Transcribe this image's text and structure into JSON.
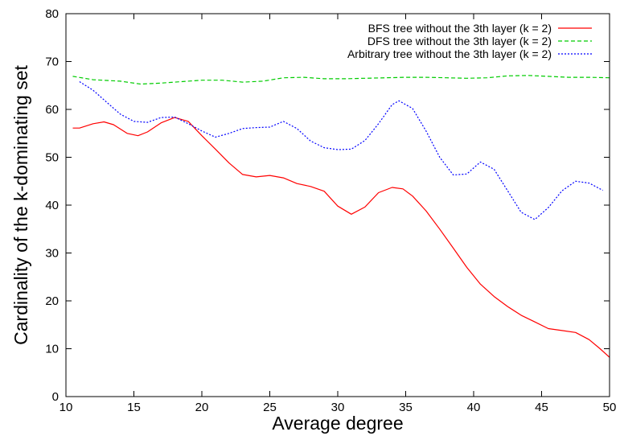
{
  "chart_data": {
    "type": "line",
    "title": "",
    "xlabel": "Average degree",
    "ylabel": "Cardinality of the k-dominating set",
    "xlim": [
      10,
      50
    ],
    "ylim": [
      0,
      80
    ],
    "xticks": [
      10,
      15,
      20,
      25,
      30,
      35,
      40,
      45,
      50
    ],
    "yticks": [
      0,
      10,
      20,
      30,
      40,
      50,
      60,
      70,
      80
    ],
    "grid": false,
    "legend_position": "top-right",
    "series": [
      {
        "name": "BFS tree without the 3th layer (k = 2)",
        "color": "#ff0000",
        "dash": "solid",
        "x": [
          10.5,
          11.0,
          12.0,
          12.8,
          13.5,
          14.5,
          15.3,
          16.0,
          17.0,
          18.0,
          19.0,
          20.0,
          21.0,
          22.0,
          23.0,
          24.0,
          25.0,
          26.0,
          27.0,
          28.0,
          29.0,
          30.0,
          31.0,
          32.0,
          33.0,
          34.0,
          34.8,
          35.5,
          36.5,
          37.5,
          38.5,
          39.5,
          40.5,
          41.5,
          42.5,
          43.5,
          44.5,
          45.5,
          46.5,
          47.5,
          48.5,
          49.3,
          50.0
        ],
        "y": [
          56.1,
          56.1,
          57.0,
          57.4,
          56.8,
          55.0,
          54.5,
          55.3,
          57.2,
          58.3,
          57.5,
          54.5,
          51.7,
          48.8,
          46.4,
          45.9,
          46.2,
          45.7,
          44.5,
          43.9,
          42.9,
          39.8,
          38.1,
          39.6,
          42.6,
          43.7,
          43.4,
          41.9,
          38.8,
          35.0,
          31.0,
          27.0,
          23.5,
          20.9,
          18.8,
          17.0,
          15.6,
          14.2,
          13.8,
          13.4,
          11.9,
          10.0,
          8.2
        ]
      },
      {
        "name": "DFS tree without the 3th layer (k = 2)",
        "color": "#00cc00",
        "dash": "dashed",
        "x": [
          10.5,
          12.0,
          14.0,
          15.5,
          17.0,
          18.5,
          20.0,
          21.5,
          23.0,
          24.5,
          26.0,
          27.5,
          29.0,
          30.5,
          32.0,
          33.5,
          35.0,
          36.5,
          38.0,
          39.5,
          41.0,
          42.5,
          44.0,
          45.5,
          47.0,
          48.5,
          50.0
        ],
        "y": [
          66.9,
          66.2,
          65.9,
          65.3,
          65.5,
          65.8,
          66.1,
          66.1,
          65.7,
          65.9,
          66.6,
          66.7,
          66.4,
          66.4,
          66.5,
          66.6,
          66.7,
          66.7,
          66.6,
          66.5,
          66.6,
          67.0,
          67.1,
          66.9,
          66.7,
          66.7,
          66.6
        ]
      },
      {
        "name": "Arbitrary tree without the 3th layer (k = 2)",
        "color": "#0000ff",
        "dash": "dotted",
        "x": [
          11.0,
          12.0,
          13.0,
          14.0,
          15.0,
          16.0,
          17.0,
          18.0,
          19.0,
          20.0,
          21.0,
          22.0,
          23.0,
          24.0,
          25.0,
          26.0,
          27.0,
          28.0,
          29.0,
          30.0,
          31.0,
          32.0,
          33.0,
          34.0,
          34.5,
          35.5,
          36.5,
          37.5,
          38.5,
          39.5,
          40.5,
          41.5,
          42.5,
          43.5,
          44.5,
          45.5,
          46.5,
          47.5,
          48.5,
          49.5
        ],
        "y": [
          65.8,
          64.0,
          61.5,
          59.0,
          57.5,
          57.3,
          58.3,
          58.4,
          57.0,
          55.5,
          54.2,
          55.0,
          56.0,
          56.2,
          56.3,
          57.5,
          56.0,
          53.4,
          52.0,
          51.6,
          51.7,
          53.5,
          57.0,
          61.0,
          61.8,
          60.2,
          55.5,
          50.0,
          46.3,
          46.5,
          49.0,
          47.5,
          43.0,
          38.5,
          37.0,
          39.5,
          43.0,
          45.0,
          44.6,
          43.1
        ]
      }
    ]
  }
}
